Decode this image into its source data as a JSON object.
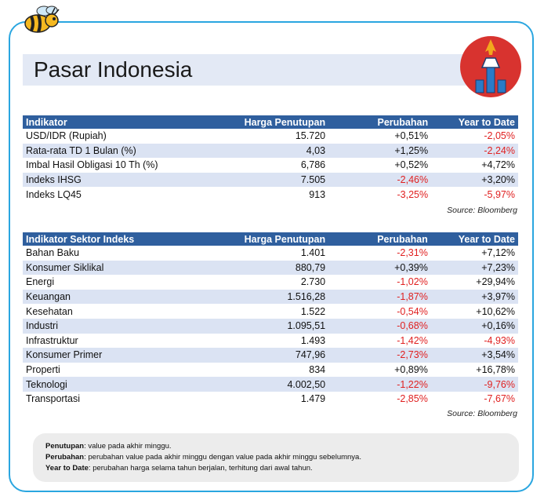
{
  "title": "Pasar Indonesia",
  "table1": {
    "headers": [
      "Indikator",
      "Harga Penutupan",
      "Perubahan",
      "Year to Date"
    ],
    "rows": [
      [
        "USD/IDR (Rupiah)",
        "15.720",
        "+0,51%",
        "-2,05%"
      ],
      [
        "Rata-rata TD 1 Bulan (%)",
        "4,03",
        "+1,25%",
        "-2,24%"
      ],
      [
        "Imbal Hasil Obligasi 10 Th (%)",
        "6,786",
        "+0,52%",
        "+4,72%"
      ],
      [
        "Indeks IHSG",
        "7.505",
        "-2,46%",
        "+3,20%"
      ],
      [
        "Indeks LQ45",
        "913",
        "-3,25%",
        "-5,97%"
      ]
    ],
    "source": "Source: Bloomberg"
  },
  "table2": {
    "headers": [
      "Indikator Sektor Indeks",
      "Harga Penutupan",
      "Perubahan",
      "Year to Date"
    ],
    "rows": [
      [
        "Bahan Baku",
        "1.401",
        "-2,31%",
        "+7,12%"
      ],
      [
        "Konsumer Siklikal",
        "880,79",
        "+0,39%",
        "+7,23%"
      ],
      [
        "Energi",
        "2.730",
        "-1,02%",
        "+29,94%"
      ],
      [
        "Keuangan",
        "1.516,28",
        "-1,87%",
        "+3,97%"
      ],
      [
        "Kesehatan",
        "1.522",
        "-0,54%",
        "+10,62%"
      ],
      [
        "Industri",
        "1.095,51",
        "-0,68%",
        "+0,16%"
      ],
      [
        "Infrastruktur",
        "1.493",
        "-1,42%",
        "-4,93%"
      ],
      [
        "Konsumer Primer",
        "747,96",
        "-2,73%",
        "+3,54%"
      ],
      [
        "Properti",
        "834",
        "+0,89%",
        "+16,78%"
      ],
      [
        "Teknologi",
        "4.002,50",
        "-1,22%",
        "-9,76%"
      ],
      [
        "Transportasi",
        "1.479",
        "-2,85%",
        "-7,67%"
      ]
    ],
    "source": "Source: Bloomberg"
  },
  "notes": [
    {
      "term": "Penutupan",
      "text": ": value pada akhir minggu."
    },
    {
      "term": "Perubahan",
      "text": ": perubahan value pada akhir minggu dengan value pada akhir minggu sebelumnya."
    },
    {
      "term": "Year to Date",
      "text": ": perubahan harga selama tahun berjalan, terhitung dari awal tahun."
    }
  ],
  "colors": {
    "header_bg": "#2f5f9e",
    "negative": "#e02020",
    "alt_row": "#dbe3f3",
    "frame": "#2aa6e0"
  },
  "icons": [
    "bee-icon",
    "monas-monument-icon"
  ]
}
